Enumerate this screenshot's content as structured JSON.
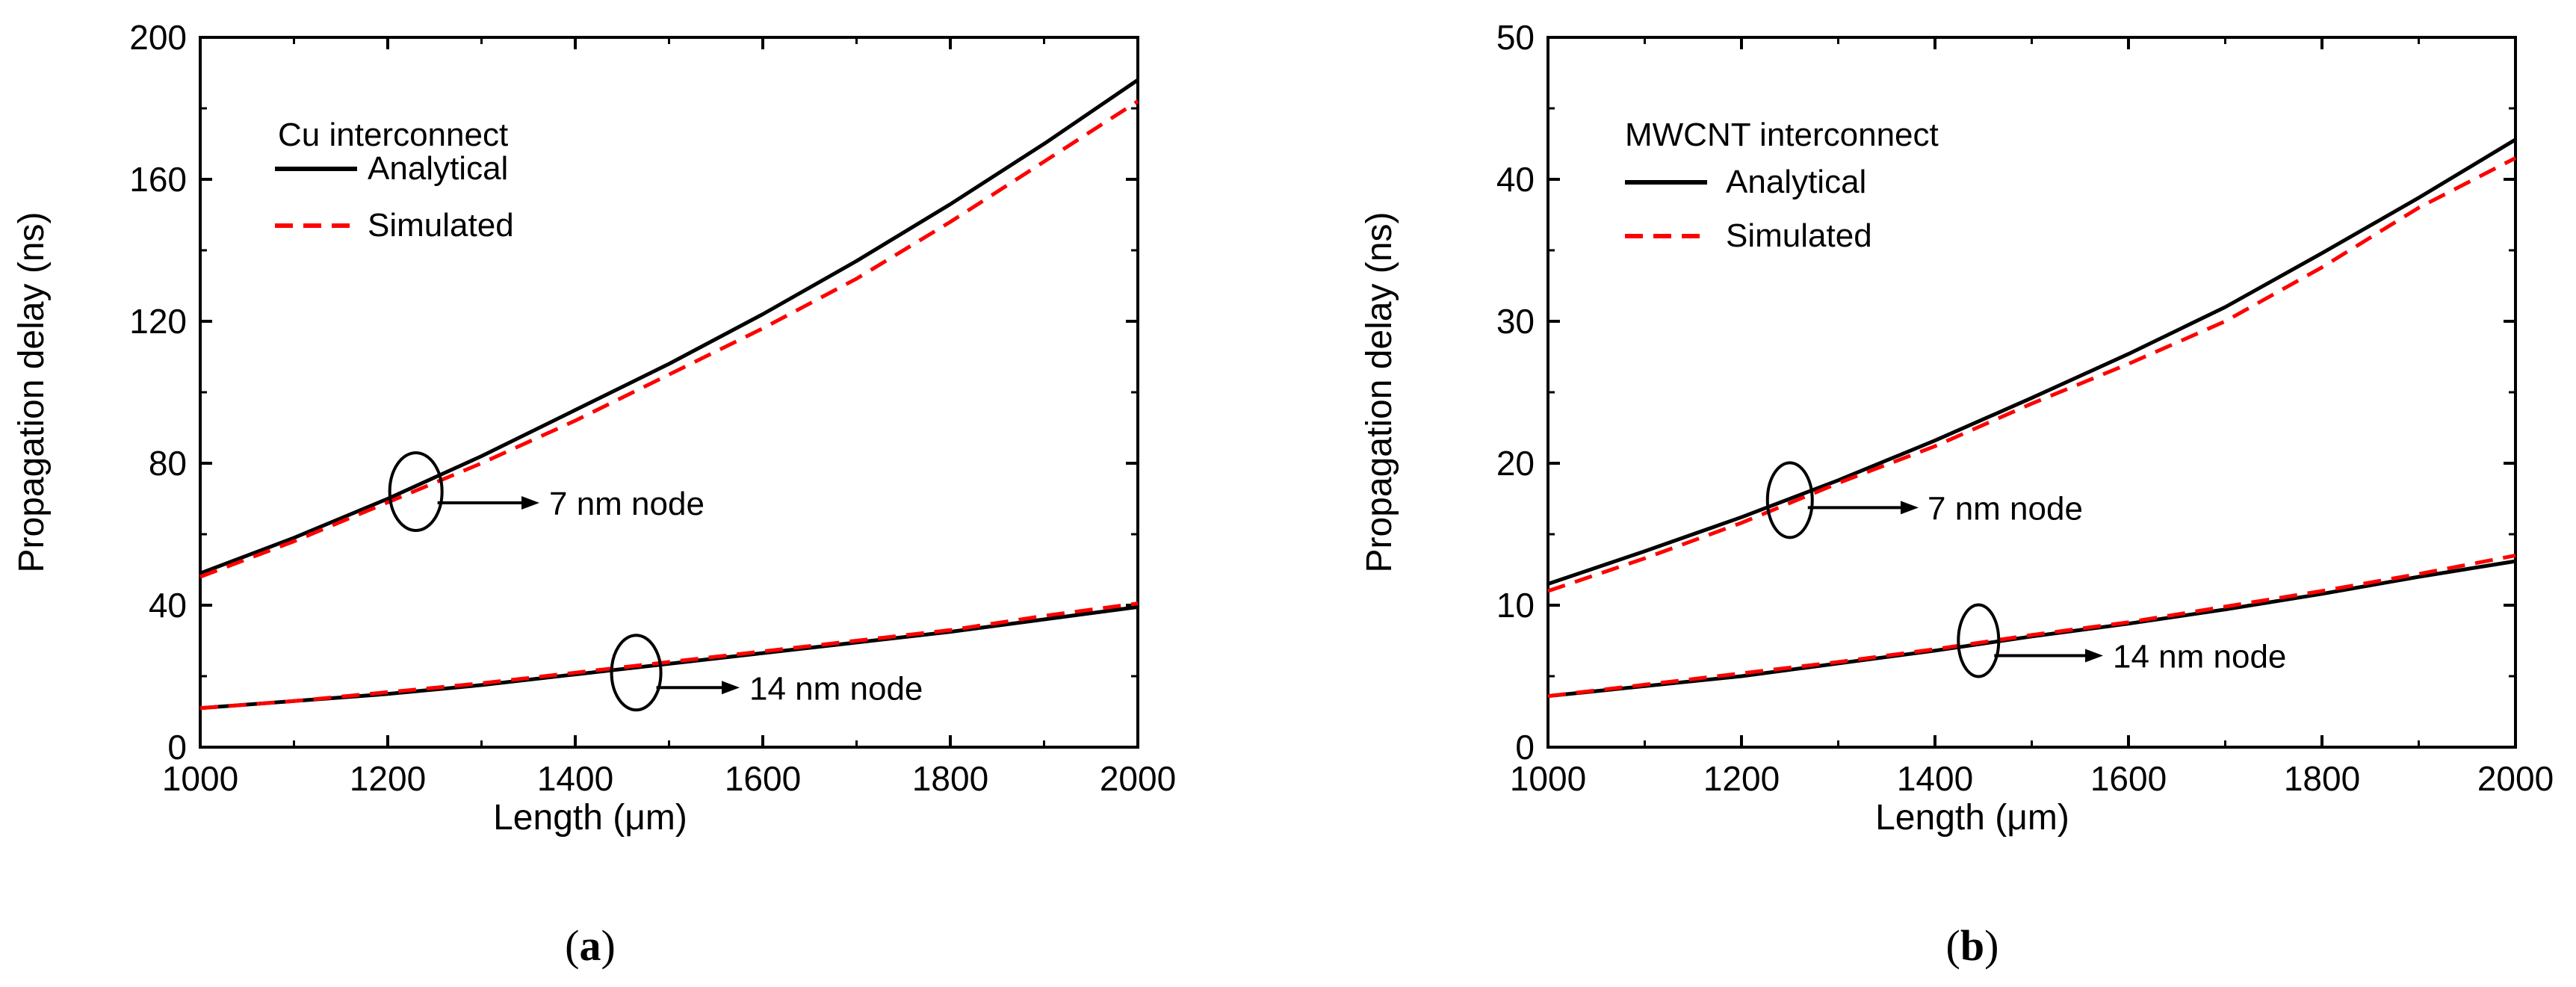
{
  "chart_data": [
    {
      "type": "line",
      "panel": "a",
      "caption_open": "(",
      "caption_letter": "a",
      "caption_close": ")",
      "xlabel": "Length (μm)",
      "ylabel": "Propagation delay (ns)",
      "xlim": [
        1000,
        2000
      ],
      "ylim": [
        0,
        200
      ],
      "xticks": [
        1000,
        1200,
        1400,
        1600,
        1800,
        2000
      ],
      "yticks": [
        0,
        40,
        80,
        120,
        160,
        200
      ],
      "legend_title": "Cu interconnect",
      "legend_position": "top-left",
      "legend_entries": [
        "Analytical",
        "Simulated"
      ],
      "series": [
        {
          "name": "Analytical",
          "group": "7 nm node",
          "style": "solid",
          "color": "#000000",
          "x": [
            1000,
            1100,
            1200,
            1300,
            1400,
            1500,
            1600,
            1700,
            1800,
            1900,
            2000
          ],
          "y": [
            49,
            59,
            70,
            82,
            95,
            108,
            122,
            137,
            153,
            170,
            188
          ]
        },
        {
          "name": "Simulated",
          "group": "7 nm node",
          "style": "dashed",
          "color": "#ff0000",
          "x": [
            1000,
            1100,
            1200,
            1300,
            1400,
            1500,
            1600,
            1700,
            1800,
            1900,
            2000
          ],
          "y": [
            48,
            58,
            69,
            80,
            92,
            105,
            118,
            132,
            148,
            165,
            182
          ]
        },
        {
          "name": "Analytical",
          "group": "14 nm node",
          "style": "solid",
          "color": "#000000",
          "x": [
            1000,
            1100,
            1200,
            1300,
            1400,
            1500,
            1600,
            1700,
            1800,
            1900,
            2000
          ],
          "y": [
            11,
            13,
            15,
            17.5,
            20.5,
            23.5,
            26.5,
            29.5,
            32.5,
            36,
            39.5
          ]
        },
        {
          "name": "Simulated",
          "group": "14 nm node",
          "style": "dashed",
          "color": "#ff0000",
          "x": [
            1000,
            1100,
            1200,
            1300,
            1400,
            1500,
            1600,
            1700,
            1800,
            1900,
            2000
          ],
          "y": [
            11,
            13,
            15.5,
            18,
            21,
            24,
            27,
            30,
            33,
            37,
            40.5
          ]
        }
      ],
      "annotations": [
        {
          "text": "7 nm node",
          "x": 1230,
          "y": 72
        },
        {
          "text": "14 nm node",
          "x": 1465,
          "y": 21
        }
      ]
    },
    {
      "type": "line",
      "panel": "b",
      "caption_open": "(",
      "caption_letter": "b",
      "caption_close": ")",
      "xlabel": "Length (μm)",
      "ylabel": "Propagation delay (ns)",
      "xlim": [
        1000,
        2000
      ],
      "ylim": [
        0,
        50
      ],
      "xticks": [
        1000,
        1200,
        1400,
        1600,
        1800,
        2000
      ],
      "yticks": [
        0,
        10,
        20,
        30,
        40,
        50
      ],
      "legend_title": "MWCNT interconnect",
      "legend_position": "top-left",
      "legend_entries": [
        "Analytical",
        "Simulated"
      ],
      "series": [
        {
          "name": "Analytical",
          "group": "7 nm node",
          "style": "solid",
          "color": "#000000",
          "x": [
            1000,
            1100,
            1200,
            1300,
            1400,
            1500,
            1600,
            1700,
            1800,
            1900,
            2000
          ],
          "y": [
            11.5,
            13.8,
            16.2,
            18.8,
            21.6,
            24.6,
            27.7,
            31.0,
            34.8,
            38.7,
            42.8
          ]
        },
        {
          "name": "Simulated",
          "group": "7 nm node",
          "style": "dashed",
          "color": "#ff0000",
          "x": [
            1000,
            1100,
            1200,
            1300,
            1400,
            1500,
            1600,
            1700,
            1800,
            1900,
            2000
          ],
          "y": [
            11.0,
            13.3,
            15.8,
            18.6,
            21.2,
            24.2,
            27.0,
            30.0,
            33.8,
            38.0,
            41.5
          ]
        },
        {
          "name": "Analytical",
          "group": "14 nm node",
          "style": "solid",
          "color": "#000000",
          "x": [
            1000,
            1100,
            1200,
            1300,
            1400,
            1500,
            1600,
            1700,
            1800,
            1900,
            2000
          ],
          "y": [
            3.6,
            4.3,
            5.0,
            5.9,
            6.8,
            7.8,
            8.7,
            9.7,
            10.8,
            12.0,
            13.1
          ]
        },
        {
          "name": "Simulated",
          "group": "14 nm node",
          "style": "dashed",
          "color": "#ff0000",
          "x": [
            1000,
            1100,
            1200,
            1300,
            1400,
            1500,
            1600,
            1700,
            1800,
            1900,
            2000
          ],
          "y": [
            3.6,
            4.4,
            5.2,
            6.0,
            6.9,
            7.9,
            8.8,
            9.9,
            11.0,
            12.2,
            13.5
          ]
        }
      ],
      "annotations": [
        {
          "text": "7 nm node",
          "x": 1250,
          "y": 17.4
        },
        {
          "text": "14 nm node",
          "x": 1445,
          "y": 7.5
        }
      ]
    }
  ]
}
